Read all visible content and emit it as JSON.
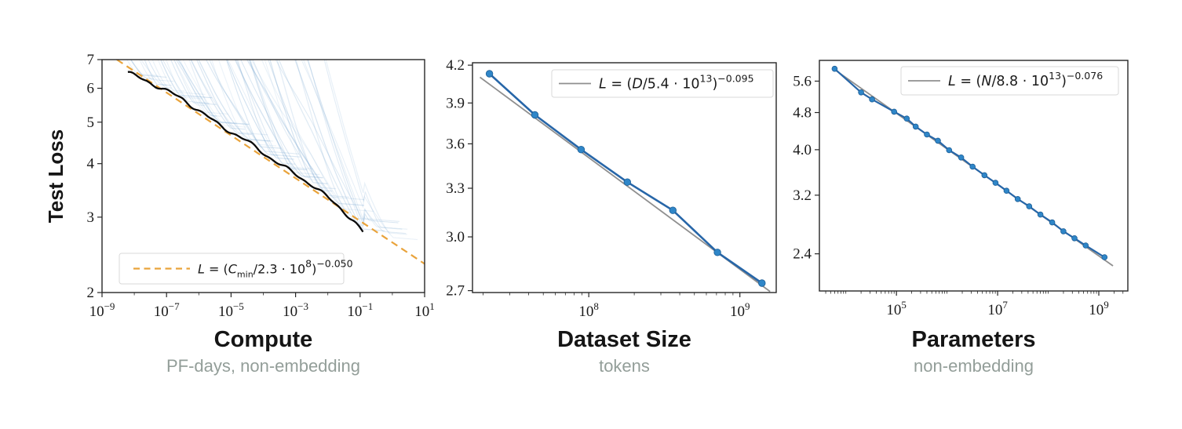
{
  "figure": {
    "ylabel": "Test Loss",
    "colors": {
      "background": "#ffffff",
      "spine": "#262626",
      "tick_label": "#1a1a1a",
      "title": "#151515",
      "subtitle": "#939e99",
      "legend_border": "#d9d9d9"
    }
  },
  "chart_data": [
    {
      "type": "line",
      "id": "compute",
      "title": "Compute",
      "subtitle": "PF-days, non-embedding",
      "ylabel": "Test Loss",
      "xscale": "log",
      "yscale": "log",
      "xlim": [
        1e-09,
        10
      ],
      "ylim": [
        2,
        7
      ],
      "grid": false,
      "xticks": [
        {
          "v": 1e-09,
          "exp": "−9"
        },
        {
          "v": 1e-07,
          "exp": "−7"
        },
        {
          "v": 1e-05,
          "exp": "−5"
        },
        {
          "v": 0.001,
          "exp": "−3"
        },
        {
          "v": 0.1,
          "exp": "−1"
        },
        {
          "v": 10,
          "exp": "1"
        }
      ],
      "yticks": [
        {
          "v": 7,
          "label": "7"
        },
        {
          "v": 6,
          "label": "6"
        },
        {
          "v": 5,
          "label": "5"
        },
        {
          "v": 4,
          "label": "4"
        },
        {
          "v": 3,
          "label": "3"
        },
        {
          "v": 2,
          "label": "2"
        }
      ],
      "xminor": "decades",
      "fit": {
        "scale": 230000000.0,
        "power": -0.05,
        "color": "#e9a33b",
        "style": "dashed",
        "width": 2.2,
        "x_range_log": [
          -8.54,
          1.0
        ],
        "legend_position": "bottom-left",
        "label_text": "L = (C_min/2.3 · 10^8)^−0.050",
        "label_segments": [
          {
            "t": "L",
            "italic": true
          },
          {
            "t": " = ("
          },
          {
            "t": "C",
            "italic": true
          },
          {
            "t": "min",
            "pos": "sub"
          },
          {
            "t": "/2.3 · 10"
          },
          {
            "t": "8",
            "pos": "sup"
          },
          {
            "t": ")"
          },
          {
            "t": "−0.050",
            "pos": "sup"
          }
        ]
      },
      "envelope": {
        "color": "#0a0a0a",
        "width": 2.3,
        "anchors_log": [
          [
            -8.2,
            0.814
          ],
          [
            -7.6,
            0.795
          ],
          [
            -6.5,
            0.753
          ],
          [
            -5.5,
            0.699
          ],
          [
            -4.5,
            0.654
          ],
          [
            -3.5,
            0.601
          ],
          [
            -2.5,
            0.553
          ],
          [
            -1.6,
            0.498
          ],
          [
            -1.2,
            0.468
          ],
          [
            -0.88,
            0.438
          ]
        ]
      },
      "curve_fan": {
        "description": "individual training-run learning curves (loss vs compute)",
        "count": 56,
        "seed": 11,
        "log_x_end_range": [
          -7.9,
          0.05
        ],
        "extra_slope_range": [
          0.045,
          0.16
        ],
        "color_rgb": "110,160,205",
        "opacity_range": [
          0.13,
          0.33
        ]
      }
    },
    {
      "type": "line",
      "id": "dataset-size",
      "title": "Dataset Size",
      "subtitle": "tokens",
      "xscale": "log",
      "yscale": "log",
      "xlim": [
        17000000.0,
        1740000000.0
      ],
      "ylim": [
        2.69,
        4.22
      ],
      "grid": false,
      "xticks": [
        {
          "v": 100000000.0,
          "exp": "8"
        },
        {
          "v": 1000000000.0,
          "exp": "9"
        }
      ],
      "yticks": [
        {
          "v": 4.2,
          "label": "4.2"
        },
        {
          "v": 3.9,
          "label": "3.9"
        },
        {
          "v": 3.6,
          "label": "3.6"
        },
        {
          "v": 3.3,
          "label": "3.3"
        },
        {
          "v": 3.0,
          "label": "3.0"
        },
        {
          "v": 2.7,
          "label": "2.7"
        }
      ],
      "xminor": "log29",
      "points": [
        [
          22000000.0,
          4.13
        ],
        [
          44000000.0,
          3.81
        ],
        [
          89000000.0,
          3.56
        ],
        [
          180000000.0,
          3.34
        ],
        [
          360000000.0,
          3.16
        ],
        [
          710000000.0,
          2.91
        ],
        [
          1400000000.0,
          2.74
        ]
      ],
      "line_color": "#2766a8",
      "marker_color": "#2f86c8",
      "fit": {
        "scale": 54000000000000.0,
        "power": -0.095,
        "color": "#8f8f8f",
        "style": "solid",
        "width": 1.8,
        "x_range_log": [
          7.28,
          9.2
        ],
        "legend_position": "top-right",
        "label_text": "L = (D/5.4 · 10^13)^−0.095",
        "label_segments": [
          {
            "t": "L",
            "italic": true
          },
          {
            "t": " = ("
          },
          {
            "t": "D",
            "italic": true
          },
          {
            "t": "/5.4 · 10"
          },
          {
            "t": "13",
            "pos": "sup"
          },
          {
            "t": ")"
          },
          {
            "t": "−0.095",
            "pos": "sup"
          }
        ]
      }
    },
    {
      "type": "line",
      "id": "parameters",
      "title": "Parameters",
      "subtitle": "non-embedding",
      "xscale": "log",
      "yscale": "log",
      "xlim": [
        3000.0,
        3750000000.0
      ],
      "ylim": [
        2.0,
        6.2
      ],
      "grid": false,
      "xticks": [
        {
          "v": 100000.0,
          "exp": "5"
        },
        {
          "v": 10000000.0,
          "exp": "7"
        },
        {
          "v": 1000000000.0,
          "exp": "9"
        }
      ],
      "yticks": [
        {
          "v": 5.6,
          "label": "5.6"
        },
        {
          "v": 4.8,
          "label": "4.8"
        },
        {
          "v": 4.0,
          "label": "4.0"
        },
        {
          "v": 3.2,
          "label": "3.2"
        },
        {
          "v": 2.4,
          "label": "2.4"
        }
      ],
      "xminor": "log29",
      "points": [
        [
          6000.0,
          5.95
        ],
        [
          20000.0,
          5.3
        ],
        [
          33000.0,
          5.12
        ],
        [
          90000.0,
          4.82
        ],
        [
          160000.0,
          4.66
        ],
        [
          240000.0,
          4.48
        ],
        [
          400000.0,
          4.31
        ],
        [
          660000.0,
          4.18
        ],
        [
          1100000.0,
          3.99
        ],
        [
          1900000.0,
          3.85
        ],
        [
          3200000.0,
          3.68
        ],
        [
          5500000.0,
          3.53
        ],
        [
          9100000.0,
          3.4
        ],
        [
          15000000.0,
          3.27
        ],
        [
          25000000.0,
          3.14
        ],
        [
          42000000.0,
          3.03
        ],
        [
          70000000.0,
          2.91
        ],
        [
          120000000.0,
          2.8
        ],
        [
          200000000.0,
          2.68
        ],
        [
          330000000.0,
          2.59
        ],
        [
          550000000.0,
          2.5
        ],
        [
          1300000000.0,
          2.36
        ]
      ],
      "line_color": "#2766a8",
      "marker_color": "#2f86c8",
      "fit": {
        "scale": 88000000000000.0,
        "power": -0.076,
        "color": "#8f8f8f",
        "style": "solid",
        "width": 1.8,
        "x_range_log": [
          3.78,
          9.28
        ],
        "legend_position": "top-right",
        "label_text": "L = (N/8.8 · 10^13)^−0.076",
        "label_segments": [
          {
            "t": "L",
            "italic": true
          },
          {
            "t": " = ("
          },
          {
            "t": "N",
            "italic": true
          },
          {
            "t": "/8.8 · 10"
          },
          {
            "t": "13",
            "pos": "sup"
          },
          {
            "t": ")"
          },
          {
            "t": "−0.076",
            "pos": "sup"
          }
        ]
      }
    }
  ]
}
